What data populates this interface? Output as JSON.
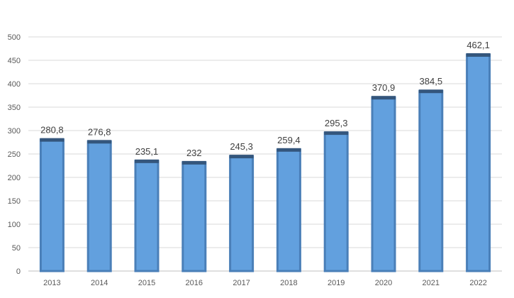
{
  "chart_data": {
    "type": "bar",
    "categories": [
      "2013",
      "2014",
      "2015",
      "2016",
      "2017",
      "2018",
      "2019",
      "2020",
      "2021",
      "2022"
    ],
    "values": [
      280.8,
      276.8,
      235.1,
      232,
      245.3,
      259.4,
      295.3,
      370.9,
      384.5,
      462.1
    ],
    "data_labels": [
      "280,8",
      "276,8",
      "235,1",
      "232",
      "245,3",
      "259,4",
      "295,3",
      "370,9",
      "384,5",
      "462,1"
    ],
    "yticks": [
      "0",
      "50",
      "100",
      "150",
      "200",
      "250",
      "300",
      "350",
      "400",
      "450",
      "500"
    ],
    "ylim": [
      0,
      500
    ],
    "grid": true,
    "legend": false,
    "colors": {
      "bar_fill": "#62a0de",
      "bar_edge": "#4a7fb8",
      "bar_top": "#34567c"
    }
  }
}
